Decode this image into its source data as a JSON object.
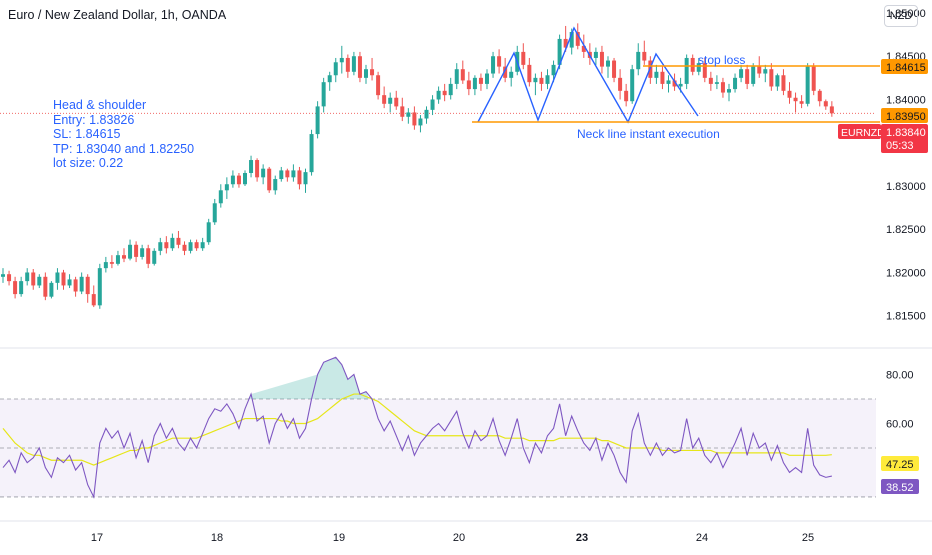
{
  "header": {
    "title": "Euro / New Zealand Dollar, 1h, OANDA",
    "currency": "NZD"
  },
  "notes": {
    "line1": "Head & shoulder",
    "line2": "Entry: 1.83826",
    "line3": "SL: 1.84615",
    "line4": "TP: 1.83040 and 1.82250",
    "line5": "lot size: 0.22"
  },
  "annotations": {
    "stop_loss": "stop loss",
    "neckline": "Neck line instant execution"
  },
  "price_labels": {
    "stop_level": "1.84615",
    "neck_level": "1.83950",
    "symbol": "EURNZD",
    "last_price": "1.83840",
    "countdown": "05:33"
  },
  "rsi_labels": {
    "rsi_ma": "47.25",
    "rsi": "38.52"
  },
  "colors": {
    "bull": "#26a69a",
    "bear": "#ef5350",
    "drawing": "#2962ff",
    "level": "#ff9800",
    "rsi": "#7e57c2",
    "rsi_ma": "#e6e619"
  },
  "chart_data": [
    {
      "type": "candlestick",
      "title": "Euro / New Zealand Dollar, 1h, OANDA",
      "ylim": [
        1.8115,
        1.8515
      ],
      "y_ticks": [
        "1.81500",
        "1.82000",
        "1.82500",
        "1.83000",
        "1.83500",
        "1.84000",
        "1.84500",
        "1.85000"
      ],
      "x_ticks": [
        "17",
        "18",
        "19",
        "20",
        "23",
        "24",
        "25"
      ],
      "levels": {
        "stop_loss": 1.84615,
        "neckline": 1.8395,
        "last": 1.8384
      },
      "ohlc": [
        [
          1.8195,
          1.8205,
          1.8188,
          1.8198
        ],
        [
          1.8198,
          1.8202,
          1.8185,
          1.819
        ],
        [
          1.819,
          1.8195,
          1.817,
          1.8175
        ],
        [
          1.8175,
          1.8195,
          1.8172,
          1.819
        ],
        [
          1.819,
          1.8205,
          1.8185,
          1.82
        ],
        [
          1.82,
          1.8204,
          1.818,
          1.8185
        ],
        [
          1.8185,
          1.8198,
          1.8182,
          1.8195
        ],
        [
          1.8195,
          1.82,
          1.8168,
          1.8172
        ],
        [
          1.8172,
          1.819,
          1.817,
          1.8188
        ],
        [
          1.8188,
          1.8205,
          1.818,
          1.82
        ],
        [
          1.82,
          1.8203,
          1.818,
          1.8185
        ],
        [
          1.8185,
          1.8198,
          1.8182,
          1.8192
        ],
        [
          1.8192,
          1.8195,
          1.8172,
          1.8178
        ],
        [
          1.8178,
          1.82,
          1.8175,
          1.8195
        ],
        [
          1.8195,
          1.8198,
          1.8165,
          1.8175
        ],
        [
          1.8175,
          1.8185,
          1.816,
          1.8162
        ],
        [
          1.8162,
          1.821,
          1.8158,
          1.8205
        ],
        [
          1.8205,
          1.8218,
          1.82,
          1.8212
        ],
        [
          1.8212,
          1.822,
          1.8205,
          1.821
        ],
        [
          1.821,
          1.8225,
          1.8208,
          1.822
        ],
        [
          1.822,
          1.8228,
          1.8212,
          1.8216
        ],
        [
          1.8216,
          1.8238,
          1.8214,
          1.8232
        ],
        [
          1.8232,
          1.8236,
          1.8212,
          1.8218
        ],
        [
          1.8218,
          1.8232,
          1.8215,
          1.8228
        ],
        [
          1.8228,
          1.8232,
          1.8205,
          1.821
        ],
        [
          1.821,
          1.8228,
          1.8208,
          1.8225
        ],
        [
          1.8225,
          1.824,
          1.822,
          1.8235
        ],
        [
          1.8235,
          1.8242,
          1.8222,
          1.8228
        ],
        [
          1.8228,
          1.8245,
          1.8225,
          1.824
        ],
        [
          1.824,
          1.8248,
          1.8228,
          1.8232
        ],
        [
          1.8232,
          1.8236,
          1.822,
          1.8225
        ],
        [
          1.8225,
          1.8238,
          1.8222,
          1.8235
        ],
        [
          1.8235,
          1.8238,
          1.8225,
          1.8228
        ],
        [
          1.8228,
          1.824,
          1.8225,
          1.8235
        ],
        [
          1.8235,
          1.8262,
          1.8232,
          1.8258
        ],
        [
          1.8258,
          1.8285,
          1.8255,
          1.828
        ],
        [
          1.828,
          1.8302,
          1.8275,
          1.8295
        ],
        [
          1.8295,
          1.831,
          1.8285,
          1.8302
        ],
        [
          1.8302,
          1.8318,
          1.8298,
          1.8312
        ],
        [
          1.8312,
          1.8315,
          1.8298,
          1.8302
        ],
        [
          1.8302,
          1.8318,
          1.83,
          1.8315
        ],
        [
          1.8315,
          1.8335,
          1.831,
          1.833
        ],
        [
          1.833,
          1.8332,
          1.8305,
          1.831
        ],
        [
          1.831,
          1.8325,
          1.8302,
          1.832
        ],
        [
          1.832,
          1.8322,
          1.8292,
          1.8295
        ],
        [
          1.8295,
          1.8312,
          1.829,
          1.8308
        ],
        [
          1.8308,
          1.8322,
          1.8305,
          1.8318
        ],
        [
          1.8318,
          1.832,
          1.8305,
          1.831
        ],
        [
          1.831,
          1.8325,
          1.8305,
          1.8318
        ],
        [
          1.8318,
          1.8322,
          1.8296,
          1.8302
        ],
        [
          1.8302,
          1.832,
          1.8292,
          1.8316
        ],
        [
          1.8316,
          1.8365,
          1.8312,
          1.836
        ],
        [
          1.836,
          1.8398,
          1.8355,
          1.8392
        ],
        [
          1.8392,
          1.8425,
          1.8385,
          1.842
        ],
        [
          1.842,
          1.8432,
          1.841,
          1.8428
        ],
        [
          1.8428,
          1.8448,
          1.842,
          1.8443
        ],
        [
          1.8443,
          1.8462,
          1.843,
          1.8448
        ],
        [
          1.8448,
          1.8452,
          1.8425,
          1.8432
        ],
        [
          1.8432,
          1.8455,
          1.8428,
          1.845
        ],
        [
          1.845,
          1.8455,
          1.842,
          1.8425
        ],
        [
          1.8425,
          1.844,
          1.8418,
          1.8435
        ],
        [
          1.8435,
          1.8448,
          1.8422,
          1.8428
        ],
        [
          1.8428,
          1.8432,
          1.84,
          1.8405
        ],
        [
          1.8405,
          1.8415,
          1.839,
          1.8395
        ],
        [
          1.8395,
          1.8408,
          1.8385,
          1.8402
        ],
        [
          1.8402,
          1.841,
          1.8388,
          1.8392
        ],
        [
          1.8392,
          1.8402,
          1.8375,
          1.838
        ],
        [
          1.838,
          1.839,
          1.8372,
          1.8385
        ],
        [
          1.8385,
          1.8392,
          1.8365,
          1.837
        ],
        [
          1.837,
          1.8382,
          1.8362,
          1.8378
        ],
        [
          1.8378,
          1.8392,
          1.8372,
          1.8388
        ],
        [
          1.8388,
          1.8405,
          1.8382,
          1.84
        ],
        [
          1.84,
          1.8415,
          1.8395,
          1.841
        ],
        [
          1.841,
          1.8418,
          1.8398,
          1.8405
        ],
        [
          1.8405,
          1.8425,
          1.84,
          1.8418
        ],
        [
          1.8418,
          1.8442,
          1.8412,
          1.8435
        ],
        [
          1.8435,
          1.8445,
          1.8418,
          1.8422
        ],
        [
          1.8422,
          1.8432,
          1.8405,
          1.8412
        ],
        [
          1.8412,
          1.8428,
          1.8405,
          1.8425
        ],
        [
          1.8425,
          1.843,
          1.841,
          1.8418
        ],
        [
          1.8418,
          1.8435,
          1.8412,
          1.843
        ],
        [
          1.843,
          1.8455,
          1.8425,
          1.845
        ],
        [
          1.845,
          1.8458,
          1.843,
          1.8438
        ],
        [
          1.8438,
          1.8448,
          1.842,
          1.8425
        ],
        [
          1.8425,
          1.8438,
          1.8415,
          1.8432
        ],
        [
          1.8432,
          1.8462,
          1.8428,
          1.8455
        ],
        [
          1.8455,
          1.8465,
          1.8435,
          1.844
        ],
        [
          1.844,
          1.8448,
          1.8415,
          1.842
        ],
        [
          1.842,
          1.843,
          1.8405,
          1.8425
        ],
        [
          1.8425,
          1.8432,
          1.841,
          1.8418
        ],
        [
          1.8418,
          1.8435,
          1.8412,
          1.8428
        ],
        [
          1.8428,
          1.8445,
          1.842,
          1.844
        ],
        [
          1.844,
          1.8475,
          1.8435,
          1.847
        ],
        [
          1.847,
          1.8485,
          1.8455,
          1.846
        ],
        [
          1.846,
          1.8482,
          1.8452,
          1.8478
        ],
        [
          1.8478,
          1.8488,
          1.8458,
          1.8462
        ],
        [
          1.8462,
          1.8475,
          1.8448,
          1.8455
        ],
        [
          1.8455,
          1.8465,
          1.844,
          1.8448
        ],
        [
          1.8448,
          1.846,
          1.844,
          1.8455
        ],
        [
          1.8455,
          1.8462,
          1.843,
          1.8438
        ],
        [
          1.8438,
          1.845,
          1.8425,
          1.8445
        ],
        [
          1.8445,
          1.8448,
          1.842,
          1.8425
        ],
        [
          1.8425,
          1.8435,
          1.84,
          1.841
        ],
        [
          1.841,
          1.8418,
          1.8392,
          1.8398
        ],
        [
          1.8398,
          1.844,
          1.8395,
          1.8435
        ],
        [
          1.8435,
          1.8465,
          1.8428,
          1.8455
        ],
        [
          1.8455,
          1.8468,
          1.844,
          1.8445
        ],
        [
          1.8445,
          1.845,
          1.8418,
          1.8425
        ],
        [
          1.8425,
          1.844,
          1.8418,
          1.8432
        ],
        [
          1.8432,
          1.8438,
          1.8412,
          1.8418
        ],
        [
          1.8418,
          1.8428,
          1.8408,
          1.8422
        ],
        [
          1.8422,
          1.843,
          1.841,
          1.8415
        ],
        [
          1.8415,
          1.8425,
          1.8408,
          1.8418
        ],
        [
          1.8418,
          1.8452,
          1.8412,
          1.8448
        ],
        [
          1.8448,
          1.8452,
          1.8428,
          1.8432
        ],
        [
          1.8432,
          1.8448,
          1.8428,
          1.8442
        ],
        [
          1.8442,
          1.8448,
          1.842,
          1.8425
        ],
        [
          1.8425,
          1.8432,
          1.841,
          1.8418
        ],
        [
          1.8418,
          1.8428,
          1.8412,
          1.842
        ],
        [
          1.842,
          1.8425,
          1.8402,
          1.8408
        ],
        [
          1.8408,
          1.8418,
          1.8398,
          1.8412
        ],
        [
          1.8412,
          1.843,
          1.8408,
          1.8425
        ],
        [
          1.8425,
          1.844,
          1.842,
          1.8435
        ],
        [
          1.8435,
          1.844,
          1.8412,
          1.8418
        ],
        [
          1.8418,
          1.8442,
          1.8415,
          1.8438
        ],
        [
          1.8438,
          1.845,
          1.8425,
          1.843
        ],
        [
          1.843,
          1.844,
          1.842,
          1.8435
        ],
        [
          1.8435,
          1.8442,
          1.841,
          1.8415
        ],
        [
          1.8415,
          1.843,
          1.841,
          1.8428
        ],
        [
          1.8428,
          1.8435,
          1.8405,
          1.841
        ],
        [
          1.841,
          1.842,
          1.8395,
          1.8402
        ],
        [
          1.8402,
          1.8408,
          1.8385,
          1.8398
        ],
        [
          1.8398,
          1.8405,
          1.839,
          1.8395
        ],
        [
          1.8395,
          1.8442,
          1.8392,
          1.8438
        ],
        [
          1.8438,
          1.8442,
          1.8405,
          1.841
        ],
        [
          1.841,
          1.8412,
          1.8392,
          1.8398
        ],
        [
          1.8398,
          1.84,
          1.8388,
          1.8392
        ],
        [
          1.8392,
          1.8398,
          1.838,
          1.8384
        ]
      ]
    },
    {
      "type": "line",
      "title": "RSI",
      "ylim": [
        21,
        90
      ],
      "y_ticks": [
        "80.00",
        "60.00"
      ],
      "bands": {
        "upper": 70,
        "middle": 50,
        "lower": 30
      },
      "series": [
        {
          "values": [
            42,
            45,
            40,
            48,
            44,
            46,
            50,
            42,
            38,
            46,
            44,
            47,
            41,
            44,
            35,
            30,
            52,
            58,
            54,
            57,
            50,
            56,
            46,
            53,
            44,
            55,
            60,
            54,
            58,
            52,
            49,
            54,
            50,
            56,
            62,
            66,
            65,
            68,
            64,
            58,
            66,
            72,
            61,
            63,
            52,
            60,
            64,
            58,
            62,
            54,
            58,
            70,
            80,
            85,
            86,
            87,
            84,
            78,
            80,
            72,
            73,
            70,
            62,
            57,
            61,
            55,
            49,
            55,
            47,
            52,
            55,
            58,
            60,
            57,
            61,
            65,
            56,
            50,
            57,
            53,
            55,
            62,
            53,
            47,
            54,
            62,
            50,
            44,
            52,
            48,
            55,
            58,
            68,
            55,
            63,
            57,
            52,
            49,
            54,
            45,
            52,
            47,
            40,
            36,
            57,
            64,
            52,
            47,
            52,
            47,
            50,
            48,
            49,
            62,
            50,
            54,
            47,
            44,
            48,
            42,
            47,
            52,
            58,
            47,
            56,
            50,
            52,
            45,
            51,
            44,
            40,
            42,
            40,
            58,
            43,
            39,
            38,
            38.52
          ]
        },
        {
          "values": [
            58,
            55,
            52,
            50,
            48,
            47,
            47,
            46,
            45,
            45,
            45,
            45,
            45,
            45,
            44,
            43,
            44,
            45,
            46,
            47,
            48,
            49,
            49,
            50,
            50,
            51,
            52,
            53,
            54,
            54,
            54,
            54,
            54,
            55,
            56,
            57,
            58,
            59,
            60,
            61,
            62,
            62,
            62,
            62,
            62,
            62,
            61,
            61,
            60,
            60,
            60,
            61,
            62,
            64,
            66,
            68,
            70,
            71,
            72,
            72,
            71,
            70,
            69,
            67,
            65,
            63,
            61,
            59,
            57,
            56,
            55,
            55,
            55,
            55,
            55,
            55,
            55,
            55,
            55,
            55,
            55,
            55,
            55,
            54,
            54,
            54,
            54,
            53,
            53,
            53,
            53,
            53,
            54,
            54,
            54,
            54,
            54,
            54,
            54,
            53,
            53,
            52,
            51,
            50,
            50,
            50,
            50,
            50,
            50,
            49,
            49,
            49,
            49,
            49,
            49,
            49,
            49,
            49,
            48,
            48,
            48,
            48,
            48,
            48,
            48,
            48,
            48,
            48,
            48,
            48,
            47,
            47,
            47,
            47,
            47,
            47,
            47,
            47.25
          ]
        }
      ]
    }
  ]
}
